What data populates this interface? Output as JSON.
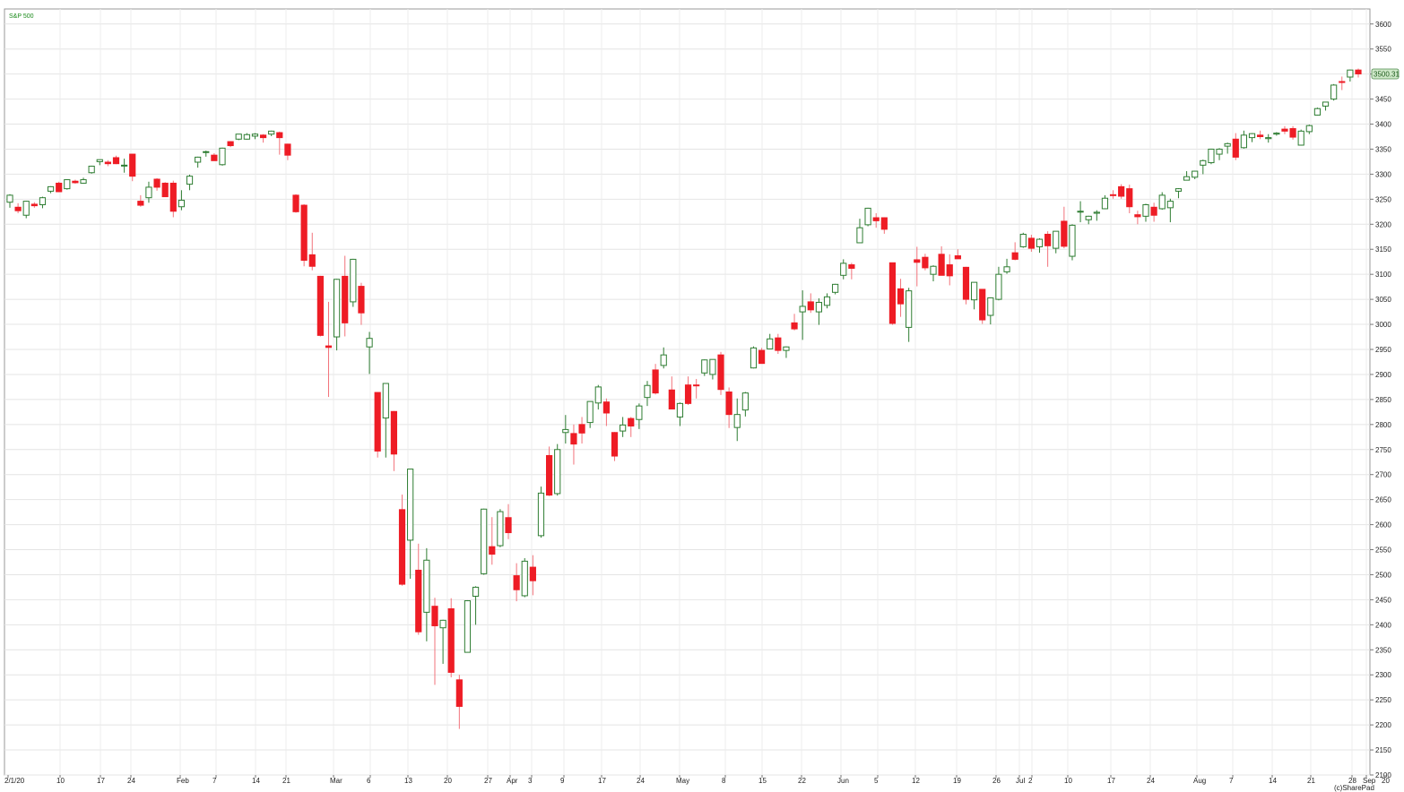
{
  "chart_data": {
    "type": "candlestick",
    "series_label": "S&P 500",
    "ylim": [
      2100,
      3630
    ],
    "y_ticks": [
      2100,
      2150,
      2200,
      2250,
      2300,
      2350,
      2400,
      2450,
      2500,
      2550,
      2600,
      2650,
      2700,
      2750,
      2800,
      2850,
      2900,
      2950,
      3000,
      3050,
      3100,
      3150,
      3200,
      3250,
      3300,
      3350,
      3400,
      3450,
      3500,
      3550,
      3600
    ],
    "x_labels": [
      "2/1/20",
      "10",
      "17",
      "24",
      "Feb",
      "7",
      "14",
      "21",
      "Mar",
      "6",
      "13",
      "20",
      "27",
      "Apr",
      "3",
      "9",
      "17",
      "24",
      "May",
      "8",
      "15",
      "22",
      "Jun",
      "5",
      "12",
      "19",
      "26",
      "Jul",
      "2",
      "10",
      "17",
      "24",
      "Aug",
      "7",
      "14",
      "21",
      "28",
      "Sep",
      "20"
    ],
    "last_value": "3500.31",
    "grid": "on",
    "up_color": "#2e7d32",
    "down_color": "#ee1c25",
    "credit": "(c)SharePad",
    "candles": [
      {
        "o": 3244,
        "h": 3260,
        "l": 3233,
        "c": 3258
      },
      {
        "o": 3234,
        "h": 3242,
        "l": 3222,
        "c": 3227
      },
      {
        "o": 3218,
        "h": 3247,
        "l": 3212,
        "c": 3246
      },
      {
        "o": 3240,
        "h": 3244,
        "l": 3233,
        "c": 3237
      },
      {
        "o": 3239,
        "h": 3255,
        "l": 3232,
        "c": 3253
      },
      {
        "o": 3266,
        "h": 3276,
        "l": 3262,
        "c": 3275
      },
      {
        "o": 3282,
        "h": 3285,
        "l": 3264,
        "c": 3265
      },
      {
        "o": 3271,
        "h": 3290,
        "l": 3269,
        "c": 3289
      },
      {
        "o": 3286,
        "h": 3289,
        "l": 3281,
        "c": 3283
      },
      {
        "o": 3282,
        "h": 3293,
        "l": 3281,
        "c": 3289
      },
      {
        "o": 3303,
        "h": 3317,
        "l": 3301,
        "c": 3316
      },
      {
        "o": 3325,
        "h": 3329,
        "l": 3318,
        "c": 3329
      },
      {
        "o": 3324,
        "h": 3328,
        "l": 3316,
        "c": 3321
      },
      {
        "o": 3333,
        "h": 3337,
        "l": 3320,
        "c": 3321
      },
      {
        "o": 3318,
        "h": 3331,
        "l": 3303,
        "c": 3318
      },
      {
        "o": 3340,
        "h": 3341,
        "l": 3286,
        "c": 3296
      },
      {
        "o": 3246,
        "h": 3258,
        "l": 3235,
        "c": 3238
      },
      {
        "o": 3253,
        "h": 3285,
        "l": 3243,
        "c": 3274
      },
      {
        "o": 3290,
        "h": 3292,
        "l": 3267,
        "c": 3274
      },
      {
        "o": 3282,
        "h": 3284,
        "l": 3260,
        "c": 3255
      },
      {
        "o": 3282,
        "h": 3287,
        "l": 3214,
        "c": 3226
      },
      {
        "o": 3235,
        "h": 3268,
        "l": 3228,
        "c": 3248
      },
      {
        "o": 3280,
        "h": 3299,
        "l": 3268,
        "c": 3296
      },
      {
        "o": 3324,
        "h": 3335,
        "l": 3313,
        "c": 3334
      },
      {
        "o": 3344,
        "h": 3347,
        "l": 3335,
        "c": 3345
      },
      {
        "o": 3338,
        "h": 3342,
        "l": 3330,
        "c": 3327
      },
      {
        "o": 3319,
        "h": 3353,
        "l": 3317,
        "c": 3352
      },
      {
        "o": 3365,
        "h": 3366,
        "l": 3354,
        "c": 3357
      },
      {
        "o": 3370,
        "h": 3380,
        "l": 3368,
        "c": 3380
      },
      {
        "o": 3370,
        "h": 3382,
        "l": 3369,
        "c": 3379
      },
      {
        "o": 3376,
        "h": 3382,
        "l": 3370,
        "c": 3380
      },
      {
        "o": 3378,
        "h": 3380,
        "l": 3363,
        "c": 3373
      },
      {
        "o": 3380,
        "h": 3387,
        "l": 3376,
        "c": 3386
      },
      {
        "o": 3383,
        "h": 3385,
        "l": 3339,
        "c": 3373
      },
      {
        "o": 3360,
        "h": 3361,
        "l": 3328,
        "c": 3338
      },
      {
        "o": 3258,
        "h": 3260,
        "l": 3223,
        "c": 3225
      },
      {
        "o": 3238,
        "h": 3240,
        "l": 3116,
        "c": 3128
      },
      {
        "o": 3139,
        "h": 3183,
        "l": 3108,
        "c": 3116
      },
      {
        "o": 3096,
        "h": 3097,
        "l": 2976,
        "c": 2978
      },
      {
        "o": 2957,
        "h": 3045,
        "l": 2855,
        "c": 2954
      },
      {
        "o": 2975,
        "h": 3091,
        "l": 2948,
        "c": 3090
      },
      {
        "o": 3096,
        "h": 3137,
        "l": 2976,
        "c": 3003
      },
      {
        "o": 3045,
        "h": 3131,
        "l": 3035,
        "c": 3130
      },
      {
        "o": 3076,
        "h": 3083,
        "l": 2999,
        "c": 3023
      },
      {
        "o": 2955,
        "h": 2985,
        "l": 2901,
        "c": 2972
      },
      {
        "o": 2864,
        "h": 2864,
        "l": 2734,
        "c": 2747
      },
      {
        "o": 2813,
        "h": 2882,
        "l": 2734,
        "c": 2882
      },
      {
        "o": 2826,
        "h": 2827,
        "l": 2707,
        "c": 2741
      },
      {
        "o": 2630,
        "h": 2660,
        "l": 2478,
        "c": 2481
      },
      {
        "o": 2569,
        "h": 2711,
        "l": 2492,
        "c": 2711
      },
      {
        "o": 2509,
        "h": 2562,
        "l": 2380,
        "c": 2386
      },
      {
        "o": 2425,
        "h": 2553,
        "l": 2367,
        "c": 2529
      },
      {
        "o": 2437,
        "h": 2454,
        "l": 2280,
        "c": 2398
      },
      {
        "o": 2394,
        "h": 2410,
        "l": 2322,
        "c": 2409
      },
      {
        "o": 2432,
        "h": 2453,
        "l": 2295,
        "c": 2305
      },
      {
        "o": 2290,
        "h": 2300,
        "l": 2192,
        "c": 2237
      },
      {
        "o": 2345,
        "h": 2449,
        "l": 2345,
        "c": 2448
      },
      {
        "o": 2457,
        "h": 2477,
        "l": 2400,
        "c": 2475
      },
      {
        "o": 2502,
        "h": 2632,
        "l": 2500,
        "c": 2631
      },
      {
        "o": 2556,
        "h": 2615,
        "l": 2520,
        "c": 2541
      },
      {
        "o": 2558,
        "h": 2631,
        "l": 2555,
        "c": 2626
      },
      {
        "o": 2614,
        "h": 2641,
        "l": 2571,
        "c": 2584
      },
      {
        "o": 2498,
        "h": 2523,
        "l": 2447,
        "c": 2470
      },
      {
        "o": 2458,
        "h": 2533,
        "l": 2455,
        "c": 2527
      },
      {
        "o": 2515,
        "h": 2539,
        "l": 2459,
        "c": 2488
      },
      {
        "o": 2578,
        "h": 2676,
        "l": 2574,
        "c": 2663
      },
      {
        "o": 2738,
        "h": 2756,
        "l": 2657,
        "c": 2659
      },
      {
        "o": 2662,
        "h": 2761,
        "l": 2658,
        "c": 2750
      },
      {
        "o": 2784,
        "h": 2819,
        "l": 2762,
        "c": 2790
      },
      {
        "o": 2782,
        "h": 2800,
        "l": 2720,
        "c": 2761
      },
      {
        "o": 2800,
        "h": 2815,
        "l": 2762,
        "c": 2783
      },
      {
        "o": 2804,
        "h": 2846,
        "l": 2793,
        "c": 2846
      },
      {
        "o": 2843,
        "h": 2879,
        "l": 2830,
        "c": 2875
      },
      {
        "o": 2845,
        "h": 2852,
        "l": 2797,
        "c": 2823
      },
      {
        "o": 2784,
        "h": 2785,
        "l": 2727,
        "c": 2737
      },
      {
        "o": 2787,
        "h": 2815,
        "l": 2775,
        "c": 2799
      },
      {
        "o": 2812,
        "h": 2815,
        "l": 2775,
        "c": 2797
      },
      {
        "o": 2810,
        "h": 2842,
        "l": 2791,
        "c": 2837
      },
      {
        "o": 2854,
        "h": 2887,
        "l": 2837,
        "c": 2878
      },
      {
        "o": 2909,
        "h": 2921,
        "l": 2860,
        "c": 2863
      },
      {
        "o": 2918,
        "h": 2954,
        "l": 2912,
        "c": 2939
      },
      {
        "o": 2869,
        "h": 2896,
        "l": 2837,
        "c": 2831
      },
      {
        "o": 2815,
        "h": 2844,
        "l": 2797,
        "c": 2842
      },
      {
        "o": 2879,
        "h": 2896,
        "l": 2839,
        "c": 2842
      },
      {
        "o": 2879,
        "h": 2891,
        "l": 2852,
        "c": 2878
      },
      {
        "o": 2903,
        "h": 2930,
        "l": 2897,
        "c": 2929
      },
      {
        "o": 2900,
        "h": 2930,
        "l": 2890,
        "c": 2930
      },
      {
        "o": 2939,
        "h": 2945,
        "l": 2859,
        "c": 2870
      },
      {
        "o": 2865,
        "h": 2874,
        "l": 2793,
        "c": 2820
      },
      {
        "o": 2794,
        "h": 2852,
        "l": 2767,
        "c": 2820
      },
      {
        "o": 2829,
        "h": 2865,
        "l": 2816,
        "c": 2863
      },
      {
        "o": 2913,
        "h": 2956,
        "l": 2912,
        "c": 2953
      },
      {
        "o": 2948,
        "h": 2953,
        "l": 2922,
        "c": 2922
      },
      {
        "o": 2951,
        "h": 2981,
        "l": 2950,
        "c": 2971
      },
      {
        "o": 2973,
        "h": 2981,
        "l": 2941,
        "c": 2948
      },
      {
        "o": 2948,
        "h": 2956,
        "l": 2933,
        "c": 2955
      },
      {
        "o": 3003,
        "h": 3021,
        "l": 2988,
        "c": 2991
      },
      {
        "o": 3025,
        "h": 3068,
        "l": 2969,
        "c": 3036
      },
      {
        "o": 3045,
        "h": 3062,
        "l": 3023,
        "c": 3029
      },
      {
        "o": 3025,
        "h": 3052,
        "l": 2999,
        "c": 3044
      },
      {
        "o": 3038,
        "h": 3062,
        "l": 3032,
        "c": 3055
      },
      {
        "o": 3064,
        "h": 3081,
        "l": 3060,
        "c": 3080
      },
      {
        "o": 3098,
        "h": 3130,
        "l": 3090,
        "c": 3122
      },
      {
        "o": 3119,
        "h": 3123,
        "l": 3090,
        "c": 3112
      },
      {
        "o": 3163,
        "h": 3211,
        "l": 3163,
        "c": 3193
      },
      {
        "o": 3199,
        "h": 3233,
        "l": 3196,
        "c": 3232
      },
      {
        "o": 3213,
        "h": 3222,
        "l": 3193,
        "c": 3207
      },
      {
        "o": 3213,
        "h": 3214,
        "l": 3181,
        "c": 3190
      },
      {
        "o": 3123,
        "h": 3123,
        "l": 2999,
        "c": 3002
      },
      {
        "o": 3071,
        "h": 3091,
        "l": 3015,
        "c": 3041
      },
      {
        "o": 2994,
        "h": 3073,
        "l": 2965,
        "c": 3067
      },
      {
        "o": 3129,
        "h": 3155,
        "l": 3076,
        "c": 3124
      },
      {
        "o": 3134,
        "h": 3141,
        "l": 3108,
        "c": 3113
      },
      {
        "o": 3100,
        "h": 3118,
        "l": 3086,
        "c": 3116
      },
      {
        "o": 3140,
        "h": 3156,
        "l": 3099,
        "c": 3098
      },
      {
        "o": 3119,
        "h": 3140,
        "l": 3078,
        "c": 3097
      },
      {
        "o": 3137,
        "h": 3150,
        "l": 3131,
        "c": 3131
      },
      {
        "o": 3114,
        "h": 3115,
        "l": 3040,
        "c": 3050
      },
      {
        "o": 3049,
        "h": 3084,
        "l": 3030,
        "c": 3084
      },
      {
        "o": 3070,
        "h": 3070,
        "l": 3001,
        "c": 3009
      },
      {
        "o": 3018,
        "h": 3054,
        "l": 3000,
        "c": 3053
      },
      {
        "o": 3050,
        "h": 3115,
        "l": 3048,
        "c": 3100
      },
      {
        "o": 3105,
        "h": 3131,
        "l": 3101,
        "c": 3115
      },
      {
        "o": 3143,
        "h": 3164,
        "l": 3128,
        "c": 3130
      },
      {
        "o": 3155,
        "h": 3183,
        "l": 3153,
        "c": 3180
      },
      {
        "o": 3172,
        "h": 3179,
        "l": 3145,
        "c": 3152
      },
      {
        "o": 3155,
        "h": 3172,
        "l": 3143,
        "c": 3170
      },
      {
        "o": 3180,
        "h": 3186,
        "l": 3115,
        "c": 3157
      },
      {
        "o": 3152,
        "h": 3185,
        "l": 3142,
        "c": 3186
      },
      {
        "o": 3206,
        "h": 3235,
        "l": 3152,
        "c": 3156
      },
      {
        "o": 3136,
        "h": 3200,
        "l": 3128,
        "c": 3198
      },
      {
        "o": 3225,
        "h": 3246,
        "l": 3204,
        "c": 3226
      },
      {
        "o": 3209,
        "h": 3217,
        "l": 3200,
        "c": 3216
      },
      {
        "o": 3222,
        "h": 3228,
        "l": 3207,
        "c": 3224
      },
      {
        "o": 3231,
        "h": 3258,
        "l": 3230,
        "c": 3252
      },
      {
        "o": 3259,
        "h": 3268,
        "l": 3251,
        "c": 3258
      },
      {
        "o": 3275,
        "h": 3280,
        "l": 3251,
        "c": 3256
      },
      {
        "o": 3271,
        "h": 3279,
        "l": 3222,
        "c": 3235
      },
      {
        "o": 3219,
        "h": 3227,
        "l": 3200,
        "c": 3215
      },
      {
        "o": 3216,
        "h": 3241,
        "l": 3205,
        "c": 3239
      },
      {
        "o": 3234,
        "h": 3243,
        "l": 3205,
        "c": 3218
      },
      {
        "o": 3231,
        "h": 3264,
        "l": 3229,
        "c": 3258
      },
      {
        "o": 3233,
        "h": 3251,
        "l": 3204,
        "c": 3246
      },
      {
        "o": 3266,
        "h": 3272,
        "l": 3252,
        "c": 3271
      },
      {
        "o": 3288,
        "h": 3306,
        "l": 3288,
        "c": 3295
      },
      {
        "o": 3294,
        "h": 3307,
        "l": 3290,
        "c": 3306
      },
      {
        "o": 3318,
        "h": 3329,
        "l": 3300,
        "c": 3327
      },
      {
        "o": 3323,
        "h": 3351,
        "l": 3320,
        "c": 3350
      },
      {
        "o": 3340,
        "h": 3352,
        "l": 3328,
        "c": 3350
      },
      {
        "o": 3356,
        "h": 3363,
        "l": 3341,
        "c": 3361
      },
      {
        "o": 3370,
        "h": 3382,
        "l": 3328,
        "c": 3334
      },
      {
        "o": 3353,
        "h": 3387,
        "l": 3351,
        "c": 3378
      },
      {
        "o": 3373,
        "h": 3382,
        "l": 3364,
        "c": 3381
      },
      {
        "o": 3378,
        "h": 3387,
        "l": 3370,
        "c": 3375
      },
      {
        "o": 3371,
        "h": 3380,
        "l": 3363,
        "c": 3373
      },
      {
        "o": 3380,
        "h": 3384,
        "l": 3377,
        "c": 3382
      },
      {
        "o": 3390,
        "h": 3396,
        "l": 3380,
        "c": 3386
      },
      {
        "o": 3391,
        "h": 3396,
        "l": 3369,
        "c": 3374
      },
      {
        "o": 3358,
        "h": 3389,
        "l": 3357,
        "c": 3386
      },
      {
        "o": 3385,
        "h": 3399,
        "l": 3380,
        "c": 3397
      },
      {
        "o": 3418,
        "h": 3433,
        "l": 3417,
        "c": 3431
      },
      {
        "o": 3436,
        "h": 3444,
        "l": 3427,
        "c": 3444
      },
      {
        "o": 3450,
        "h": 3480,
        "l": 3447,
        "c": 3478
      },
      {
        "o": 3485,
        "h": 3495,
        "l": 3468,
        "c": 3484
      },
      {
        "o": 3494,
        "h": 3509,
        "l": 3485,
        "c": 3508
      },
      {
        "o": 3508,
        "h": 3511,
        "l": 3493,
        "c": 3500.31
      }
    ]
  }
}
